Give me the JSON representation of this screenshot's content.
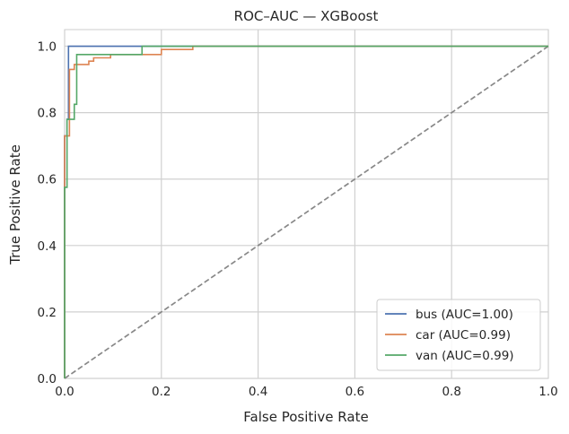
{
  "chart_data": {
    "type": "line",
    "title": "ROC–AUC — XGBoost",
    "xlabel": "False Positive Rate",
    "ylabel": "True Positive Rate",
    "xlim": [
      0,
      1.0
    ],
    "ylim": [
      0,
      1.05
    ],
    "x_ticks": [
      "0.0",
      "0.2",
      "0.4",
      "0.6",
      "0.8",
      "1.0"
    ],
    "y_ticks": [
      "0.0",
      "0.2",
      "0.4",
      "0.6",
      "0.8",
      "1.0"
    ],
    "grid": true,
    "legend_position": "bottom-right",
    "series": [
      {
        "name": "bus (AUC=1.00)",
        "color": "#4c72b0",
        "points": [
          [
            0,
            0
          ],
          [
            0,
            0.73
          ],
          [
            0.005,
            0.73
          ],
          [
            0.005,
            0.78
          ],
          [
            0.008,
            0.78
          ],
          [
            0.008,
            1.0
          ],
          [
            0.16,
            1.0
          ],
          [
            1.0,
            1.0
          ]
        ]
      },
      {
        "name": "car (AUC=0.99)",
        "color": "#dd8452",
        "points": [
          [
            0,
            0
          ],
          [
            0,
            0.73
          ],
          [
            0.01,
            0.73
          ],
          [
            0.01,
            0.93
          ],
          [
            0.02,
            0.93
          ],
          [
            0.02,
            0.945
          ],
          [
            0.05,
            0.945
          ],
          [
            0.05,
            0.955
          ],
          [
            0.06,
            0.955
          ],
          [
            0.06,
            0.965
          ],
          [
            0.095,
            0.965
          ],
          [
            0.095,
            0.975
          ],
          [
            0.2,
            0.975
          ],
          [
            0.2,
            0.99
          ],
          [
            0.265,
            0.99
          ],
          [
            0.265,
            1.0
          ],
          [
            1.0,
            1.0
          ]
        ]
      },
      {
        "name": "van (AUC=0.99)",
        "color": "#55a868",
        "points": [
          [
            0,
            0
          ],
          [
            0,
            0.575
          ],
          [
            0.005,
            0.575
          ],
          [
            0.005,
            0.78
          ],
          [
            0.02,
            0.78
          ],
          [
            0.02,
            0.825
          ],
          [
            0.025,
            0.825
          ],
          [
            0.025,
            0.975
          ],
          [
            0.16,
            0.975
          ],
          [
            0.16,
            1.0
          ],
          [
            1.0,
            1.0
          ]
        ]
      }
    ],
    "reference_line": {
      "color": "#888888",
      "style": "dashed",
      "points": [
        [
          0,
          0
        ],
        [
          1,
          1
        ]
      ]
    }
  }
}
